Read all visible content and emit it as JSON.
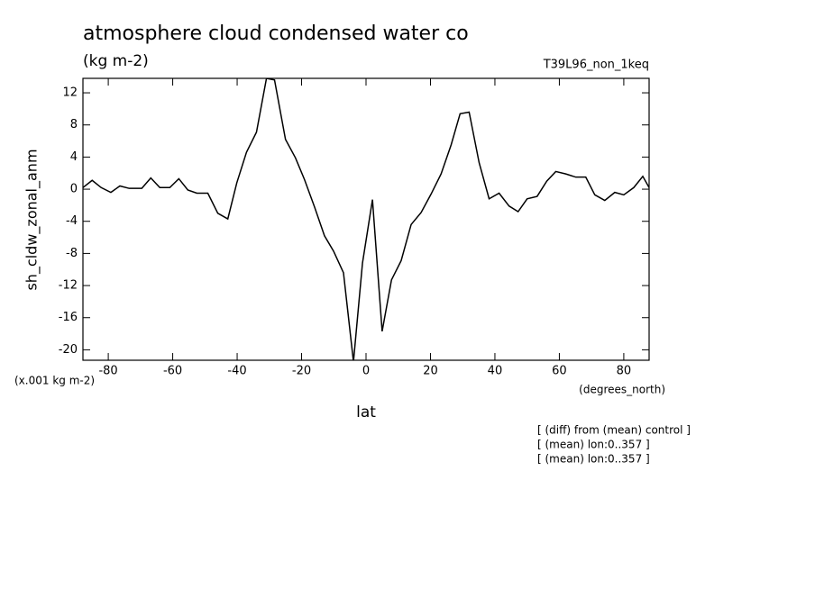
{
  "chart_data": {
    "type": "line",
    "title": "atmosphere cloud condensed water co",
    "subtitle": "(kg m-2)",
    "run_label": "T39L96_non_1keq",
    "y_label": "sh_cldw_zonal_anm",
    "y_units": "(x.001 kg m-2)",
    "x_units": "(degrees_north)",
    "x_label": "lat",
    "annotations": [
      "[ (diff) from (mean) control ]",
      "[ (mean) lon:0..357 ]",
      "[ (mean) lon:0..357 ]"
    ],
    "xlim": [
      -87.86,
      87.86
    ],
    "xticks": [
      -80,
      -60,
      -40,
      -20,
      0,
      20,
      40,
      60,
      80
    ],
    "ylim": [
      -21.3,
      13.8
    ],
    "yticks": [
      12,
      8,
      4,
      0,
      -4,
      -8,
      -12,
      -16,
      -20
    ],
    "x": [
      -87.86,
      -85,
      -82.2,
      -79.2,
      -76.4,
      -73.5,
      -69.6,
      -66.8,
      -64,
      -60.9,
      -58.1,
      -55.3,
      -52.5,
      -49.1,
      -46,
      -42.9,
      -40.1,
      -37.1,
      -34,
      -30.9,
      -28.4,
      -25,
      -21.9,
      -19.1,
      -16,
      -12.9,
      -10.1,
      -7,
      -3.9,
      -1.1,
      2,
      5,
      7.9,
      10.9,
      14,
      17.1,
      20.2,
      23.3,
      26.4,
      29.2,
      32,
      35.1,
      38.2,
      41.3,
      44.4,
      47.2,
      50,
      53.1,
      56.1,
      58.9,
      62,
      65.1,
      68.2,
      71,
      74.1,
      77.2,
      80,
      83.1,
      85.9,
      87.86
    ],
    "series": [
      {
        "color": "#000000",
        "values": [
          0.2,
          1.1,
          0.2,
          -0.4,
          0.4,
          0.1,
          0.1,
          1.4,
          0.2,
          0.2,
          1.3,
          -0.1,
          -0.5,
          -0.5,
          -3,
          -3.7,
          0.8,
          4.6,
          7.1,
          13.8,
          13.6,
          6.2,
          3.9,
          1.2,
          -2.2,
          -5.8,
          -7.7,
          -10.4,
          -21.5,
          -9.2,
          -1.3,
          -17.7,
          -11.3,
          -8.9,
          -4.4,
          -2.9,
          -0.6,
          1.9,
          5.5,
          9.4,
          9.6,
          3.3,
          -1.2,
          -0.5,
          -2.1,
          -2.8,
          -1.2,
          -0.9,
          1,
          2.2,
          1.9,
          1.5,
          1.5,
          -0.7,
          -1.4,
          -0.4,
          -0.7,
          0.2,
          1.6,
          0.2
        ]
      }
    ]
  }
}
